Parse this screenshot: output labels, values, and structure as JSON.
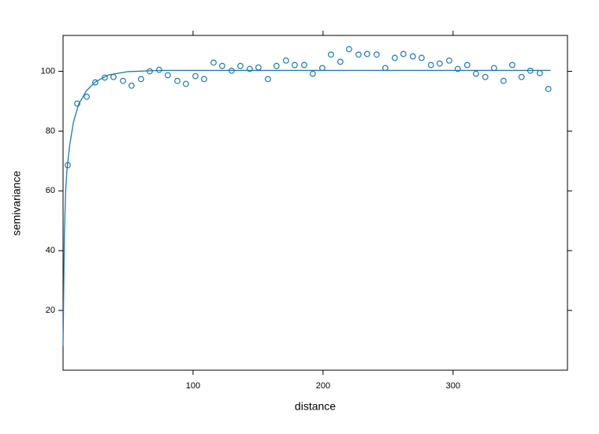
{
  "chart_data": {
    "type": "scatter",
    "x_label": "distance",
    "y_label": "semivariance",
    "xlim": [
      0,
      388
    ],
    "ylim": [
      0,
      112
    ],
    "xticks": [
      100,
      200,
      300
    ],
    "yticks": [
      20,
      40,
      60,
      80,
      100
    ],
    "color": "#1a7ab5",
    "x": [
      3.6,
      10.9,
      18.2,
      24.8,
      32.1,
      38.8,
      46.1,
      52.7,
      60,
      66.7,
      73.9,
      80.6,
      87.9,
      94.5,
      101.8,
      108.5,
      115.8,
      122.4,
      129.7,
      136.4,
      143.6,
      150.3,
      157.6,
      164.2,
      171.5,
      178.2,
      185.5,
      192.1,
      199.4,
      206.1,
      213.3,
      220,
      227.3,
      233.9,
      241.2,
      247.9,
      255.2,
      261.8,
      269.1,
      275.8,
      283,
      289.7,
      297,
      303.6,
      310.9,
      317.6,
      324.8,
      331.5,
      338.8,
      345.5,
      352.7,
      359.4,
      366.7,
      373.3
    ],
    "values": [
      68.6,
      89.2,
      91.5,
      96.3,
      97.9,
      98.1,
      96.8,
      95.2,
      97.4,
      100,
      100.5,
      98.7,
      96.8,
      95.8,
      98.4,
      97.4,
      102.9,
      101.8,
      100.2,
      101.8,
      100.8,
      101.3,
      97.4,
      101.8,
      103.6,
      102.1,
      102.1,
      99.2,
      101.1,
      105.6,
      103.2,
      107.4,
      105.6,
      105.8,
      105.6,
      101.1,
      104.5,
      105.8,
      105,
      104.5,
      102.1,
      102.6,
      103.6,
      100.8,
      102.1,
      99.2,
      98.1,
      101.1,
      96.8,
      102.1,
      98.1,
      100.2,
      99.4,
      94.1
    ],
    "fit": {
      "x": [
        0,
        1,
        2,
        3,
        5,
        8,
        12,
        18,
        25,
        35,
        50,
        75,
        100,
        150,
        200,
        250,
        300,
        375
      ],
      "values": [
        8,
        45,
        60,
        67,
        75,
        83,
        89,
        93.5,
        96.5,
        98.8,
        99.9,
        100.3,
        100.3,
        100.3,
        100.3,
        100.3,
        100.3,
        100.3
      ]
    }
  }
}
